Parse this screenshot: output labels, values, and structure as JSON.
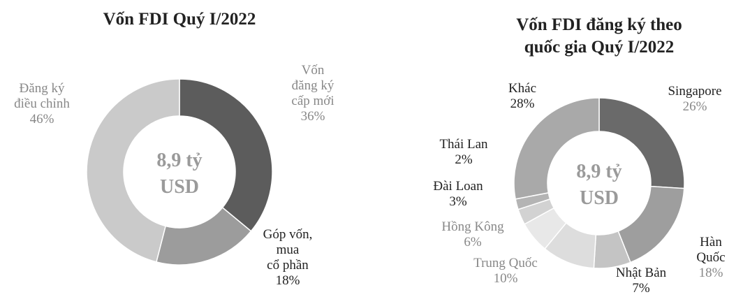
{
  "chart_data": [
    {
      "type": "pie",
      "title": "Vốn FDI Quý I/2022",
      "center_text": [
        "8,9 tỷ",
        "USD"
      ],
      "categories": [
        "Vốn\nđăng ký\ncấp mới",
        "Góp vốn,\nmua\ncổ phần",
        "Đăng ký\nđiều chỉnh"
      ],
      "values": [
        36,
        18,
        46
      ],
      "value_labels": [
        "36%",
        "18%",
        "46%"
      ],
      "colors": [
        "#5c5c5c",
        "#9c9c9c",
        "#cacaca"
      ]
    },
    {
      "type": "pie",
      "title": "Vốn FDI đăng ký theo\nquốc gia Quý I/2022",
      "center_text": [
        "8,9 tỷ",
        "USD"
      ],
      "categories": [
        "Singapore",
        "Hàn Quốc",
        "Nhật Bản",
        "Trung Quốc",
        "Hồng Kông",
        "Đài Loan",
        "Thái Lan",
        "Khác"
      ],
      "values": [
        26,
        18,
        7,
        10,
        6,
        3,
        2,
        28
      ],
      "value_labels": [
        "26%",
        "18%",
        "7%",
        "10%",
        "6%",
        "3%",
        "2%",
        "28%"
      ],
      "colors": [
        "#6a6a6a",
        "#9e9e9e",
        "#c4c4c4",
        "#dddddd",
        "#e8e8e8",
        "#d2d2d2",
        "#b4b4b4",
        "#a9a9a9"
      ]
    }
  ]
}
